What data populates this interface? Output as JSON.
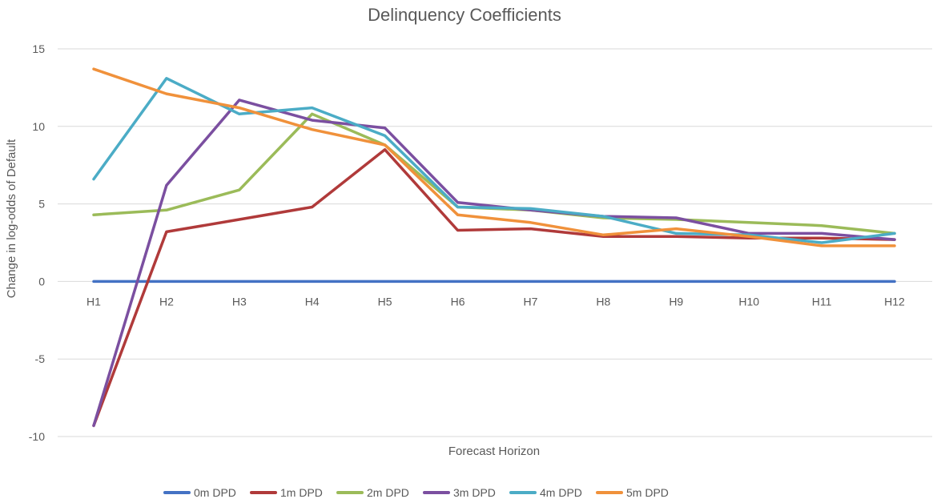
{
  "chart_data": {
    "type": "line",
    "title": "Delinquency Coefficients",
    "xlabel": "Forecast Horizon",
    "ylabel": "Change in log-odds  of Default",
    "categories": [
      "H1",
      "H2",
      "H3",
      "H4",
      "H5",
      "H6",
      "H7",
      "H8",
      "H9",
      "H10",
      "H11",
      "H12"
    ],
    "ylim": [
      -10,
      15
    ],
    "yticks": [
      -10,
      -5,
      0,
      5,
      10,
      15
    ],
    "grid": true,
    "legend_position": "bottom",
    "series": [
      {
        "name": "0m DPD",
        "color": "#4472c4",
        "values": [
          0,
          0,
          0,
          0,
          0,
          0,
          0,
          0,
          0,
          0,
          0,
          0
        ]
      },
      {
        "name": "1m DPD",
        "color": "#b03a3a",
        "values": [
          -9.3,
          3.2,
          4.0,
          4.8,
          8.5,
          3.3,
          3.4,
          2.9,
          2.9,
          2.8,
          2.8,
          2.7
        ]
      },
      {
        "name": "2m DPD",
        "color": "#9bbb59",
        "values": [
          4.3,
          4.6,
          5.9,
          10.8,
          8.8,
          4.8,
          4.6,
          4.1,
          4.0,
          3.8,
          3.6,
          3.1
        ]
      },
      {
        "name": "3m DPD",
        "color": "#7b4fa0",
        "values": [
          -9.3,
          6.2,
          11.7,
          10.4,
          9.9,
          5.1,
          4.6,
          4.2,
          4.1,
          3.1,
          3.1,
          2.7
        ]
      },
      {
        "name": "4m DPD",
        "color": "#4bacc6",
        "values": [
          6.6,
          13.1,
          10.8,
          11.2,
          9.4,
          4.8,
          4.7,
          4.2,
          3.1,
          3.0,
          2.5,
          3.1
        ]
      },
      {
        "name": "5m DPD",
        "color": "#f0913b",
        "values": [
          13.7,
          12.1,
          11.2,
          9.8,
          8.8,
          4.3,
          3.8,
          3.0,
          3.4,
          2.9,
          2.3,
          2.3
        ]
      }
    ]
  }
}
